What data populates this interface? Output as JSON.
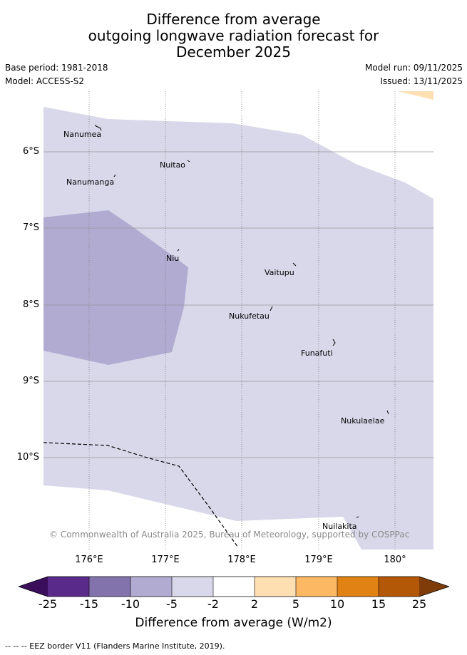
{
  "title": {
    "line1": "Difference from average",
    "line2": "outgoing longwave radiation forecast for",
    "line3": "December 2025"
  },
  "meta": {
    "base_period": "Base period: 1981-2018",
    "model": "Model: ACCESS-S2",
    "model_run": "Model run: 09/11/2025",
    "issued": "Issued: 13/11/2025"
  },
  "axes": {
    "lat_labels": [
      "6°S",
      "7°S",
      "8°S",
      "9°S",
      "10°S"
    ],
    "lon_labels": [
      "176°E",
      "177°E",
      "178°E",
      "179°E",
      "180°"
    ]
  },
  "places": [
    "Nanumea",
    "Nuitao",
    "Nanumanga",
    "Niu",
    "Vaitupu",
    "Nukufetau",
    "Funafuti",
    "Nukulaelae",
    "Nuilakita"
  ],
  "copyright": "© Commonwealth of Australia 2025, Bureau of Meteorology, supported by COSPPac",
  "colorbar": {
    "ticks": [
      "-25",
      "-15",
      "-10",
      "-5",
      "-2",
      "2",
      "5",
      "10",
      "15",
      "25"
    ],
    "colors": [
      "#3b0e5c",
      "#5a2a8a",
      "#8373ad",
      "#b1abd1",
      "#d8d8ea",
      "#ffffff",
      "#fddfb2",
      "#fdb863",
      "#e08214",
      "#b35806",
      "#7f3b08"
    ],
    "title": "Difference from average (W/m2)"
  },
  "legend": "--  --  -- EEZ border V11 (Flanders Marine Institute, 2019)."
}
